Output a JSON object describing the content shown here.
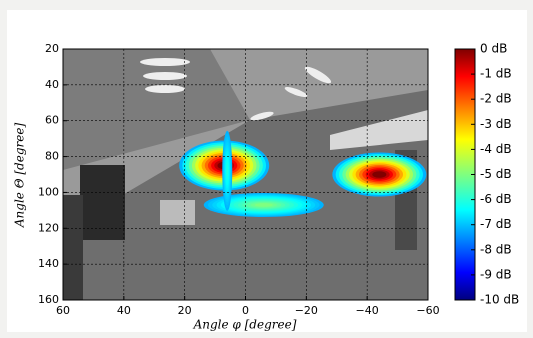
{
  "chart_data": {
    "type": "heatmap",
    "x_label": "Angle φ [degree]",
    "y_label": "Angle Θ [degree]",
    "xlim": [
      60,
      -60
    ],
    "xticks": [
      60,
      40,
      20,
      0,
      {
        "value": -20,
        "label": "−20"
      },
      {
        "value": -40,
        "label": "−40"
      },
      {
        "value": -60,
        "label": "−60"
      }
    ],
    "ylim": [
      160,
      20
    ],
    "yticks": [
      20,
      40,
      60,
      80,
      100,
      120,
      140,
      160
    ],
    "grid": true,
    "colormap": "jet",
    "clim": [
      -10,
      0
    ],
    "cticks": [
      {
        "value": 0,
        "label": "0 dB"
      },
      {
        "value": -1,
        "label": "-1 dB"
      },
      {
        "value": -2,
        "label": "-2 dB"
      },
      {
        "value": -3,
        "label": "-3 dB"
      },
      {
        "value": -4,
        "label": "-4 dB"
      },
      {
        "value": -5,
        "label": "-5 dB"
      },
      {
        "value": -6,
        "label": "-6 dB"
      },
      {
        "value": -7,
        "label": "-7 dB"
      },
      {
        "value": -8,
        "label": "-8 dB"
      },
      {
        "value": -9,
        "label": "-9 dB"
      },
      {
        "value": -10,
        "label": "-10 dB"
      }
    ],
    "hotspots": {
      "x": [
        7,
        -44,
        -6,
        6
      ],
      "y": [
        85,
        90,
        107,
        88
      ],
      "values": [
        0,
        0,
        -5,
        -6
      ]
    }
  }
}
